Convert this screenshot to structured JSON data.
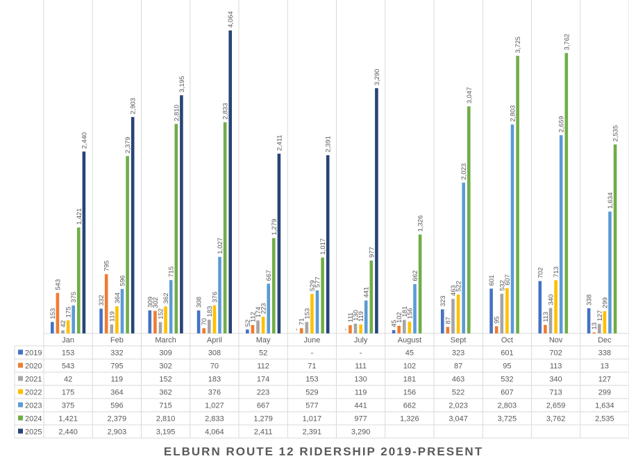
{
  "chart_data": {
    "type": "bar",
    "title": "ELBURN ROUTE 12 RIDERSHIP  2019-PRESENT",
    "categories": [
      "Jan",
      "Feb",
      "March",
      "April",
      "May",
      "June",
      "July",
      "August",
      "Sept",
      "Oct",
      "Nov",
      "Dec"
    ],
    "series": [
      {
        "name": "2019",
        "color": "#4472C4",
        "values": [
          153,
          332,
          309,
          308,
          52,
          null,
          null,
          45,
          323,
          601,
          702,
          338
        ],
        "labels": [
          "153",
          "332",
          "309",
          "308",
          "52",
          "-",
          "-",
          "45",
          "323",
          "601",
          "702",
          "338"
        ]
      },
      {
        "name": "2020",
        "color": "#ED7D31",
        "values": [
          543,
          795,
          302,
          70,
          112,
          71,
          111,
          102,
          87,
          95,
          113,
          13
        ],
        "labels": [
          "543",
          "795",
          "302",
          "70",
          "112",
          "71",
          "111",
          "102",
          "87",
          "95",
          "113",
          "13"
        ]
      },
      {
        "name": "2021",
        "color": "#A5A5A5",
        "values": [
          42,
          119,
          152,
          183,
          174,
          153,
          130,
          181,
          463,
          532,
          340,
          127
        ],
        "labels": [
          "42",
          "119",
          "152",
          "183",
          "174",
          "153",
          "130",
          "181",
          "463",
          "532",
          "340",
          "127"
        ]
      },
      {
        "name": "2022",
        "color": "#FFC000",
        "values": [
          175,
          364,
          362,
          376,
          223,
          529,
          119,
          156,
          522,
          607,
          713,
          299
        ],
        "labels": [
          "175",
          "364",
          "362",
          "376",
          "223",
          "529",
          "119",
          "156",
          "522",
          "607",
          "713",
          "299"
        ]
      },
      {
        "name": "2023",
        "color": "#5B9BD5",
        "values": [
          375,
          596,
          715,
          1027,
          667,
          577,
          441,
          662,
          2023,
          2803,
          2659,
          1634
        ],
        "labels": [
          "375",
          "596",
          "715",
          "1,027",
          "667",
          "577",
          "441",
          "662",
          "2,023",
          "2,803",
          "2,659",
          "1,634"
        ]
      },
      {
        "name": "2024",
        "color": "#70AD47",
        "values": [
          1421,
          2379,
          2810,
          2833,
          1279,
          1017,
          977,
          1326,
          3047,
          3725,
          3762,
          2535
        ],
        "labels": [
          "1,421",
          "2,379",
          "2,810",
          "2,833",
          "1,279",
          "1,017",
          "977",
          "1,326",
          "3,047",
          "3,725",
          "3,762",
          "2,535"
        ]
      },
      {
        "name": "2025",
        "color": "#264478",
        "values": [
          2440,
          2903,
          3195,
          4064,
          2411,
          2391,
          3290,
          null,
          null,
          null,
          null,
          null
        ],
        "labels": [
          "2,440",
          "2,903",
          "3,195",
          "4,064",
          "2,411",
          "2,391",
          "3,290",
          "",
          "",
          "",
          "",
          ""
        ]
      }
    ],
    "ylim": [
      0,
      4064
    ],
    "legend": "data-table",
    "grid": false
  }
}
